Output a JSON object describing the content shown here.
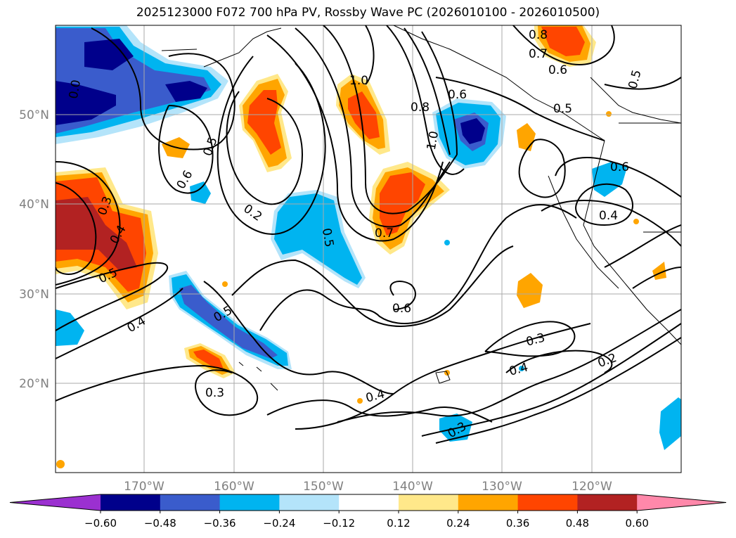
{
  "title": "2025123000 F072 700 hPa PV, Rossby Wave PC (2026010100 - 2026010500)",
  "lat_labels": [
    "50°N",
    "40°N",
    "30°N",
    "20°N"
  ],
  "lon_labels": [
    "170°W",
    "160°W",
    "150°W",
    "140°W",
    "130°W",
    "120°W"
  ],
  "colorbar": {
    "ticks": [
      "−0.60",
      "−0.48",
      "−0.36",
      "−0.24",
      "−0.12",
      "0.12",
      "0.24",
      "0.36",
      "0.48",
      "0.60"
    ],
    "colors": [
      "#9b30d0",
      "#00008b",
      "#3a5ccc",
      "#00b4f0",
      "#b4e4fa",
      "#ffffff",
      "#ffe88a",
      "#ffa500",
      "#ff4500",
      "#b22222",
      "#ff88aa"
    ]
  },
  "contour_labels": [
    "0.8",
    "0.7",
    "0.6",
    "0.5",
    "1.0",
    "0.6",
    "0.8",
    "1.0",
    "0.5",
    "0.6",
    "0.5",
    "0.6",
    "0.4",
    "0.3",
    "0.4",
    "0.5",
    "0.2",
    "0.5",
    "0.7",
    "0.6",
    "0.5",
    "0.4",
    "0.3",
    "0.4",
    "0.2",
    "0.3",
    "0.4",
    "0.3",
    "0.0"
  ],
  "colors": {
    "neg_light": "#b4e4fa",
    "neg1": "#00b4f0",
    "neg2": "#3a5ccc",
    "neg3": "#00008b",
    "pos_light": "#ffe88a",
    "pos1": "#ffa500",
    "pos2": "#ff4500",
    "pos3": "#b22222"
  }
}
